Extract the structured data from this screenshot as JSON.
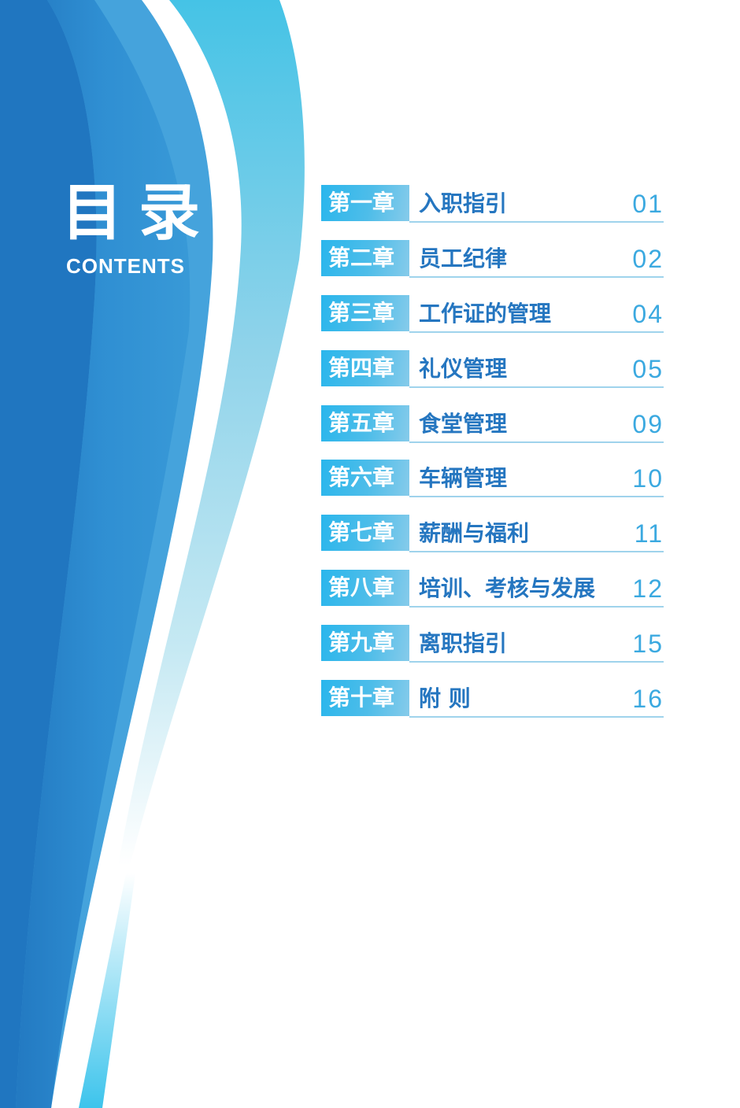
{
  "title": "目录",
  "subtitle": "CONTENTS",
  "colors": {
    "chapter_bg": "#2ab6ec",
    "name_text": "#2576c0",
    "page_text": "#3ba9e0",
    "dark_blue": "#1a6fbb"
  },
  "entries": [
    {
      "chapter": "第一章",
      "name": "入职指引",
      "page": "01"
    },
    {
      "chapter": "第二章",
      "name": "员工纪律",
      "page": "02"
    },
    {
      "chapter": "第三章",
      "name": "工作证的管理",
      "page": "04"
    },
    {
      "chapter": "第四章",
      "name": "礼仪管理",
      "page": "05"
    },
    {
      "chapter": "第五章",
      "name": "食堂管理",
      "page": "09"
    },
    {
      "chapter": "第六章",
      "name": "车辆管理",
      "page": "10"
    },
    {
      "chapter": "第七章",
      "name": "薪酬与福利",
      "page": "11"
    },
    {
      "chapter": "第八章",
      "name": "培训、考核与发展",
      "page": "12"
    },
    {
      "chapter": "第九章",
      "name": "离职指引",
      "page": "15"
    },
    {
      "chapter": "第十章",
      "name": "附 则",
      "page": "16"
    }
  ]
}
